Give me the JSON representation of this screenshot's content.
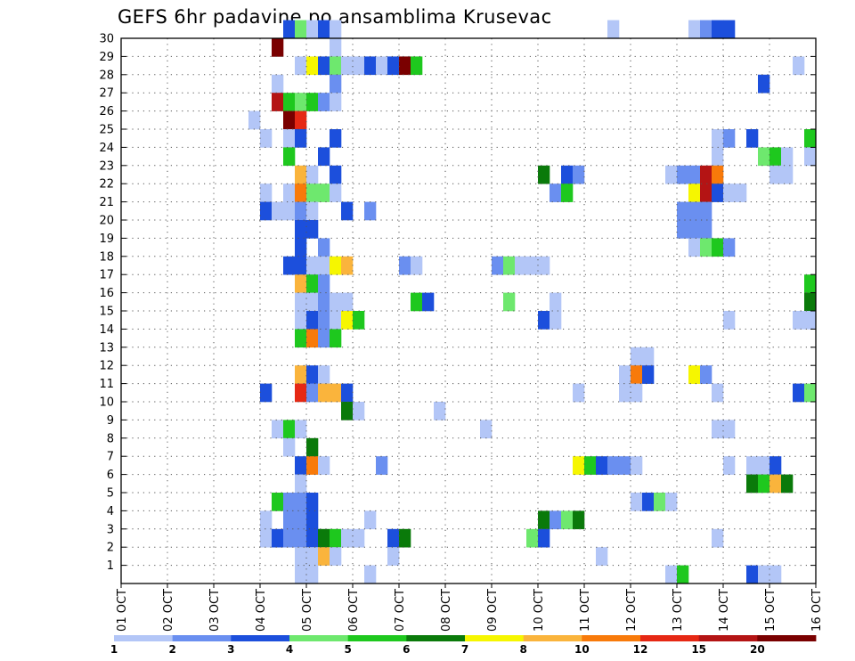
{
  "chart_data": {
    "type": "heatmap",
    "title": "GEFS 6hr padavine po ansamblima Krusevac",
    "xlabel": "",
    "ylabel": "",
    "x_ticks": [
      "01 OCT",
      "02 OCT",
      "03 OCT",
      "04 OCT",
      "05 OCT",
      "06 OCT",
      "07 OCT",
      "08 OCT",
      "09 OCT",
      "10 OCT",
      "11 OCT",
      "12 OCT",
      "13 OCT",
      "14 OCT",
      "15 OCT",
      "16 OCT"
    ],
    "y_ticks": [
      "1",
      "2",
      "3",
      "4",
      "5",
      "6",
      "7",
      "8",
      "9",
      "10",
      "11",
      "12",
      "13",
      "14",
      "15",
      "16",
      "17",
      "18",
      "19",
      "20",
      "21",
      "22",
      "23",
      "24",
      "25",
      "26",
      "27",
      "28",
      "29",
      "30"
    ],
    "x_range_days": [
      1,
      16
    ],
    "y_range": [
      0,
      30
    ],
    "steps_per_day": 4,
    "grid": true,
    "colorbar": {
      "levels": [
        1,
        2,
        3,
        4,
        5,
        6,
        7,
        8,
        10,
        12,
        15,
        20
      ],
      "colors": [
        "#b3c6f7",
        "#6a8ff0",
        "#1c4fdc",
        "#6ee86e",
        "#1ec81e",
        "#0a7a0a",
        "#f6f600",
        "#fab43c",
        "#f87a0a",
        "#e62814",
        "#b41414",
        "#7a0000"
      ]
    },
    "cells_note": "each cell: [ensemble member, 6h step index from 01 OCT 00Z, color class 0-11]",
    "cells": [
      [
        30,
        14,
        2
      ],
      [
        30,
        15,
        3
      ],
      [
        30,
        16,
        0
      ],
      [
        30,
        17,
        2
      ],
      [
        30,
        18,
        0
      ],
      [
        30,
        42,
        0
      ],
      [
        30,
        49,
        0
      ],
      [
        30,
        50,
        1
      ],
      [
        30,
        51,
        2
      ],
      [
        30,
        52,
        2
      ],
      [
        29,
        13,
        11
      ],
      [
        29,
        18,
        0
      ],
      [
        28,
        15,
        0
      ],
      [
        28,
        16,
        6
      ],
      [
        28,
        17,
        2
      ],
      [
        28,
        18,
        3
      ],
      [
        28,
        19,
        0
      ],
      [
        28,
        20,
        0
      ],
      [
        28,
        21,
        2
      ],
      [
        28,
        22,
        0
      ],
      [
        28,
        23,
        2
      ],
      [
        28,
        24,
        11
      ],
      [
        28,
        25,
        4
      ],
      [
        28,
        58,
        0
      ],
      [
        27,
        13,
        0
      ],
      [
        27,
        18,
        1
      ],
      [
        27,
        55,
        2
      ],
      [
        26,
        13,
        10
      ],
      [
        26,
        14,
        4
      ],
      [
        26,
        15,
        3
      ],
      [
        26,
        16,
        4
      ],
      [
        26,
        17,
        1
      ],
      [
        26,
        18,
        0
      ],
      [
        25,
        11,
        0
      ],
      [
        25,
        14,
        11
      ],
      [
        25,
        15,
        9
      ],
      [
        24,
        12,
        0
      ],
      [
        24,
        14,
        0
      ],
      [
        24,
        15,
        2
      ],
      [
        24,
        18,
        2
      ],
      [
        24,
        51,
        0
      ],
      [
        24,
        52,
        1
      ],
      [
        24,
        54,
        2
      ],
      [
        24,
        59,
        4
      ],
      [
        23,
        14,
        4
      ],
      [
        23,
        17,
        2
      ],
      [
        23,
        51,
        0
      ],
      [
        23,
        55,
        3
      ],
      [
        23,
        56,
        4
      ],
      [
        23,
        57,
        0
      ],
      [
        23,
        59,
        0
      ],
      [
        22,
        15,
        7
      ],
      [
        22,
        16,
        0
      ],
      [
        22,
        18,
        2
      ],
      [
        22,
        36,
        5
      ],
      [
        22,
        38,
        2
      ],
      [
        22,
        39,
        1
      ],
      [
        22,
        47,
        0
      ],
      [
        22,
        48,
        1
      ],
      [
        22,
        49,
        1
      ],
      [
        22,
        50,
        10
      ],
      [
        22,
        51,
        8
      ],
      [
        22,
        56,
        0
      ],
      [
        22,
        57,
        0
      ],
      [
        21,
        12,
        0
      ],
      [
        21,
        14,
        0
      ],
      [
        21,
        15,
        8
      ],
      [
        21,
        16,
        3
      ],
      [
        21,
        17,
        3
      ],
      [
        21,
        18,
        0
      ],
      [
        21,
        37,
        1
      ],
      [
        21,
        38,
        4
      ],
      [
        21,
        49,
        6
      ],
      [
        21,
        50,
        10
      ],
      [
        21,
        51,
        2
      ],
      [
        21,
        52,
        0
      ],
      [
        21,
        53,
        0
      ],
      [
        20,
        12,
        2
      ],
      [
        20,
        13,
        0
      ],
      [
        20,
        14,
        0
      ],
      [
        20,
        15,
        1
      ],
      [
        20,
        16,
        0
      ],
      [
        20,
        19,
        2
      ],
      [
        20,
        21,
        1
      ],
      [
        20,
        48,
        1
      ],
      [
        20,
        49,
        1
      ],
      [
        20,
        50,
        1
      ],
      [
        19,
        15,
        2
      ],
      [
        19,
        16,
        2
      ],
      [
        19,
        48,
        1
      ],
      [
        19,
        49,
        1
      ],
      [
        19,
        50,
        1
      ],
      [
        18,
        15,
        2
      ],
      [
        18,
        17,
        1
      ],
      [
        18,
        49,
        0
      ],
      [
        18,
        50,
        3
      ],
      [
        18,
        51,
        4
      ],
      [
        18,
        52,
        1
      ],
      [
        17,
        14,
        2
      ],
      [
        17,
        15,
        2
      ],
      [
        17,
        16,
        0
      ],
      [
        17,
        17,
        0
      ],
      [
        17,
        18,
        6
      ],
      [
        17,
        19,
        7
      ],
      [
        17,
        24,
        1
      ],
      [
        17,
        25,
        0
      ],
      [
        17,
        32,
        1
      ],
      [
        17,
        33,
        3
      ],
      [
        17,
        34,
        0
      ],
      [
        17,
        35,
        0
      ],
      [
        17,
        36,
        0
      ],
      [
        16,
        15,
        7
      ],
      [
        16,
        16,
        4
      ],
      [
        16,
        17,
        1
      ],
      [
        16,
        59,
        4
      ],
      [
        15,
        15,
        0
      ],
      [
        15,
        16,
        0
      ],
      [
        15,
        17,
        1
      ],
      [
        15,
        18,
        0
      ],
      [
        15,
        19,
        0
      ],
      [
        15,
        25,
        4
      ],
      [
        15,
        26,
        2
      ],
      [
        15,
        33,
        3
      ],
      [
        15,
        37,
        0
      ],
      [
        15,
        59,
        5
      ],
      [
        14,
        15,
        0
      ],
      [
        14,
        16,
        2
      ],
      [
        14,
        17,
        1
      ],
      [
        14,
        18,
        0
      ],
      [
        14,
        19,
        6
      ],
      [
        14,
        20,
        4
      ],
      [
        14,
        36,
        2
      ],
      [
        14,
        37,
        0
      ],
      [
        14,
        52,
        0
      ],
      [
        14,
        58,
        0
      ],
      [
        14,
        59,
        0
      ],
      [
        13,
        15,
        4
      ],
      [
        13,
        16,
        8
      ],
      [
        13,
        17,
        1
      ],
      [
        13,
        18,
        4
      ],
      [
        12,
        44,
        0
      ],
      [
        12,
        45,
        0
      ],
      [
        11,
        15,
        7
      ],
      [
        11,
        16,
        2
      ],
      [
        11,
        17,
        0
      ],
      [
        11,
        43,
        0
      ],
      [
        11,
        44,
        8
      ],
      [
        11,
        45,
        2
      ],
      [
        11,
        49,
        6
      ],
      [
        11,
        50,
        1
      ],
      [
        10,
        12,
        2
      ],
      [
        10,
        15,
        9
      ],
      [
        10,
        16,
        1
      ],
      [
        10,
        17,
        7
      ],
      [
        10,
        18,
        7
      ],
      [
        10,
        19,
        2
      ],
      [
        10,
        39,
        0
      ],
      [
        10,
        43,
        0
      ],
      [
        10,
        44,
        0
      ],
      [
        10,
        51,
        0
      ],
      [
        10,
        58,
        2
      ],
      [
        10,
        59,
        3
      ],
      [
        9,
        19,
        5
      ],
      [
        9,
        20,
        0
      ],
      [
        9,
        27,
        0
      ],
      [
        8,
        13,
        0
      ],
      [
        8,
        14,
        4
      ],
      [
        8,
        15,
        0
      ],
      [
        8,
        31,
        0
      ],
      [
        8,
        51,
        0
      ],
      [
        8,
        52,
        0
      ],
      [
        7,
        14,
        0
      ],
      [
        7,
        16,
        5
      ],
      [
        6,
        15,
        2
      ],
      [
        6,
        16,
        8
      ],
      [
        6,
        17,
        0
      ],
      [
        6,
        22,
        1
      ],
      [
        6,
        39,
        6
      ],
      [
        6,
        40,
        4
      ],
      [
        6,
        41,
        2
      ],
      [
        6,
        42,
        1
      ],
      [
        6,
        43,
        1
      ],
      [
        6,
        44,
        0
      ],
      [
        6,
        52,
        0
      ],
      [
        6,
        54,
        0
      ],
      [
        6,
        55,
        0
      ],
      [
        6,
        56,
        2
      ],
      [
        5,
        15,
        0
      ],
      [
        5,
        54,
        5
      ],
      [
        5,
        55,
        4
      ],
      [
        5,
        56,
        7
      ],
      [
        5,
        57,
        5
      ],
      [
        4,
        13,
        4
      ],
      [
        4,
        14,
        1
      ],
      [
        4,
        15,
        1
      ],
      [
        4,
        16,
        2
      ],
      [
        4,
        44,
        0
      ],
      [
        4,
        45,
        2
      ],
      [
        4,
        46,
        3
      ],
      [
        4,
        47,
        0
      ],
      [
        3,
        12,
        0
      ],
      [
        3,
        14,
        1
      ],
      [
        3,
        15,
        1
      ],
      [
        3,
        16,
        2
      ],
      [
        3,
        21,
        0
      ],
      [
        3,
        36,
        5
      ],
      [
        3,
        37,
        1
      ],
      [
        3,
        38,
        3
      ],
      [
        3,
        39,
        5
      ],
      [
        2,
        12,
        0
      ],
      [
        2,
        13,
        2
      ],
      [
        2,
        14,
        1
      ],
      [
        2,
        15,
        1
      ],
      [
        2,
        16,
        2
      ],
      [
        2,
        17,
        5
      ],
      [
        2,
        18,
        4
      ],
      [
        2,
        19,
        0
      ],
      [
        2,
        20,
        0
      ],
      [
        2,
        23,
        2
      ],
      [
        2,
        24,
        5
      ],
      [
        2,
        35,
        3
      ],
      [
        2,
        36,
        2
      ],
      [
        2,
        51,
        0
      ],
      [
        1,
        15,
        0
      ],
      [
        1,
        16,
        0
      ],
      [
        1,
        17,
        7
      ],
      [
        1,
        18,
        0
      ],
      [
        1,
        23,
        0
      ],
      [
        1,
        41,
        0
      ],
      [
        0,
        15,
        0
      ],
      [
        0,
        16,
        0
      ],
      [
        0,
        21,
        0
      ],
      [
        0,
        47,
        0
      ],
      [
        0,
        48,
        4
      ],
      [
        0,
        54,
        2
      ],
      [
        0,
        55,
        0
      ],
      [
        0,
        56,
        0
      ]
    ]
  }
}
